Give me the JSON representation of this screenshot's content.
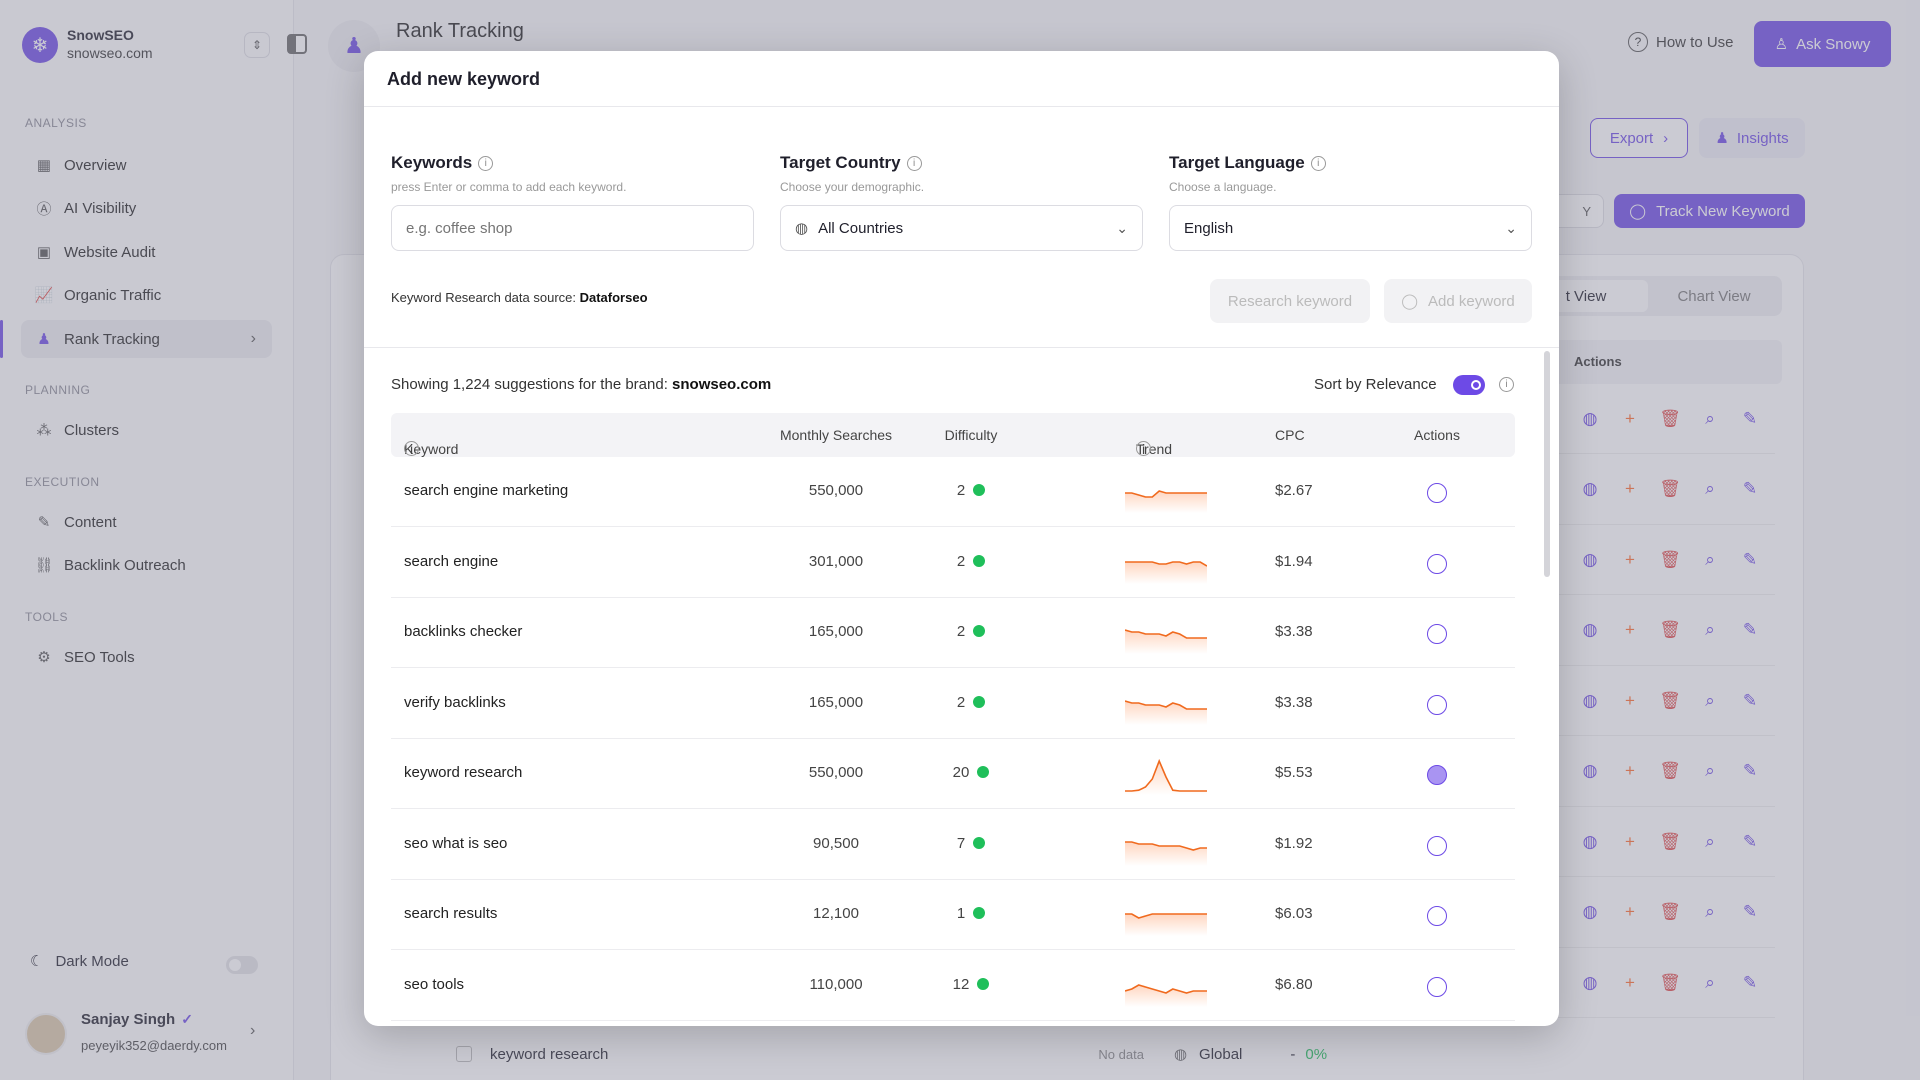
{
  "app": {
    "name": "SnowSEO",
    "domain": "snowseo.com"
  },
  "sidebar": {
    "sections": [
      {
        "label": "ANALYSIS",
        "items": [
          {
            "label": "Overview",
            "icon": "grid-icon"
          },
          {
            "label": "AI Visibility",
            "icon": "ai-icon"
          },
          {
            "label": "Website Audit",
            "icon": "audit-icon"
          },
          {
            "label": "Organic Traffic",
            "icon": "chart-icon"
          },
          {
            "label": "Rank Tracking",
            "icon": "podium-icon",
            "active": true
          }
        ]
      },
      {
        "label": "PLANNING",
        "items": [
          {
            "label": "Clusters",
            "icon": "clusters-icon"
          }
        ]
      },
      {
        "label": "EXECUTION",
        "items": [
          {
            "label": "Content",
            "icon": "feather-icon"
          },
          {
            "label": "Backlink Outreach",
            "icon": "link-icon"
          }
        ]
      },
      {
        "label": "TOOLS",
        "items": [
          {
            "label": "SEO Tools",
            "icon": "gear-icon"
          }
        ]
      }
    ],
    "dark_mode_label": "Dark Mode",
    "user": {
      "name": "Sanjay Singh",
      "email": "peyeyik352@daerdy.com"
    }
  },
  "header": {
    "title": "Rank Tracking",
    "how_to_use": "How to Use",
    "ask": "Ask Snowy"
  },
  "background": {
    "export": "Export",
    "insights": "Insights",
    "date_range_tail": "Y",
    "track_new": "Track New Keyword",
    "view_list_tail": "t View",
    "view_chart": "Chart View",
    "actions_header": "Actions",
    "last_row": {
      "keyword": "keyword research",
      "status": "No data",
      "location": "Global",
      "change": "-",
      "pct": "0%"
    }
  },
  "modal": {
    "title": "Add new keyword",
    "keywords": {
      "label": "Keywords",
      "help": "press Enter or comma to add each keyword.",
      "placeholder": "e.g. coffee shop"
    },
    "country": {
      "label": "Target Country",
      "help": "Choose your demographic.",
      "value": "All Countries"
    },
    "language": {
      "label": "Target Language",
      "help": "Choose a language.",
      "value": "English"
    },
    "source_prefix": "Keyword Research data source:",
    "source": "Dataforseo",
    "research_btn": "Research keyword",
    "add_btn": "Add keyword",
    "showing_prefix": "Showing 1,224 suggestions for the brand:",
    "brand": "snowseo.com",
    "sort_label": "Sort by Relevance",
    "sort_enabled": true,
    "columns": [
      "Keyword",
      "Monthly Searches",
      "Difficulty",
      "Trend",
      "CPC",
      "Actions"
    ],
    "rows": [
      {
        "keyword": "search engine marketing",
        "searches": "550,000",
        "difficulty": "2",
        "cpc": "$2.67",
        "trend": [
          50,
          50,
          45,
          40,
          40,
          55,
          50,
          50,
          50,
          50,
          50,
          50,
          50
        ],
        "selected": false
      },
      {
        "keyword": "search engine",
        "searches": "301,000",
        "difficulty": "2",
        "cpc": "$1.94",
        "trend": [
          55,
          55,
          55,
          55,
          55,
          50,
          50,
          55,
          55,
          50,
          55,
          55,
          45
        ],
        "selected": false
      },
      {
        "keyword": "backlinks checker",
        "searches": "165,000",
        "difficulty": "2",
        "cpc": "$3.38",
        "trend": [
          60,
          55,
          55,
          50,
          50,
          50,
          45,
          55,
          50,
          40,
          40,
          40,
          40
        ],
        "selected": false
      },
      {
        "keyword": "verify backlinks",
        "searches": "165,000",
        "difficulty": "2",
        "cpc": "$3.38",
        "trend": [
          60,
          55,
          55,
          50,
          50,
          50,
          45,
          55,
          50,
          40,
          40,
          40,
          40
        ],
        "selected": false
      },
      {
        "keyword": "keyword research",
        "searches": "550,000",
        "difficulty": "20",
        "cpc": "$5.53",
        "trend": [
          10,
          10,
          12,
          20,
          40,
          85,
          45,
          12,
          10,
          10,
          10,
          10,
          10
        ],
        "selected": true
      },
      {
        "keyword": "seo what is seo",
        "searches": "90,500",
        "difficulty": "7",
        "cpc": "$1.92",
        "trend": [
          60,
          60,
          55,
          55,
          55,
          50,
          50,
          50,
          50,
          45,
          40,
          45,
          45
        ],
        "selected": false
      },
      {
        "keyword": "search results",
        "searches": "12,100",
        "difficulty": "1",
        "cpc": "$6.03",
        "trend": [
          55,
          55,
          45,
          50,
          55,
          55,
          55,
          55,
          55,
          55,
          55,
          55,
          55
        ],
        "selected": false
      },
      {
        "keyword": "seo tools",
        "searches": "110,000",
        "difficulty": "12",
        "cpc": "$6.80",
        "trend": [
          40,
          45,
          55,
          50,
          45,
          40,
          35,
          45,
          40,
          35,
          40,
          40,
          40
        ],
        "selected": false
      }
    ]
  }
}
